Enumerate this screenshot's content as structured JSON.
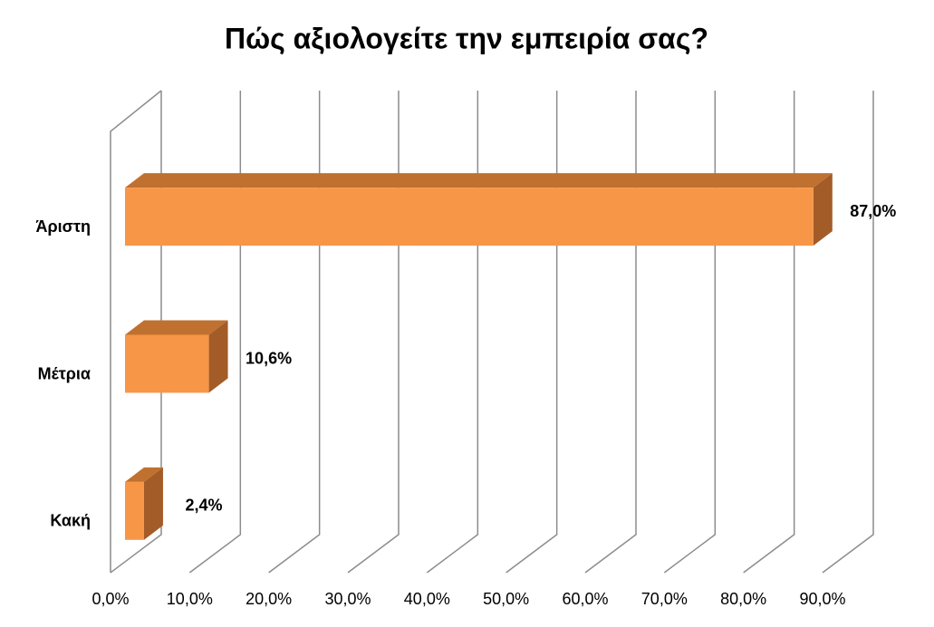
{
  "chart_data": {
    "type": "bar3d_horizontal",
    "title": "Πώς αξιολογείτε την εμπειρία σας?",
    "categories": [
      "Άριστη",
      "Μέτρια",
      "Κακή"
    ],
    "values": [
      87.0,
      10.6,
      2.4
    ],
    "value_labels": [
      "87,0%",
      "10,6%",
      "2,4%"
    ],
    "color": "#f79646",
    "xlim": [
      0,
      90
    ],
    "xticks": [
      {
        "value": 0,
        "label": "0,0%"
      },
      {
        "value": 10,
        "label": "10,0%"
      },
      {
        "value": 20,
        "label": "20,0%"
      },
      {
        "value": 30,
        "label": "30,0%"
      },
      {
        "value": 40,
        "label": "40,0%"
      },
      {
        "value": 50,
        "label": "50,0%"
      },
      {
        "value": 60,
        "label": "60,0%"
      },
      {
        "value": 70,
        "label": "70,0%"
      },
      {
        "value": 80,
        "label": "80,0%"
      },
      {
        "value": 90,
        "label": "90,0%"
      }
    ],
    "grid": true
  }
}
